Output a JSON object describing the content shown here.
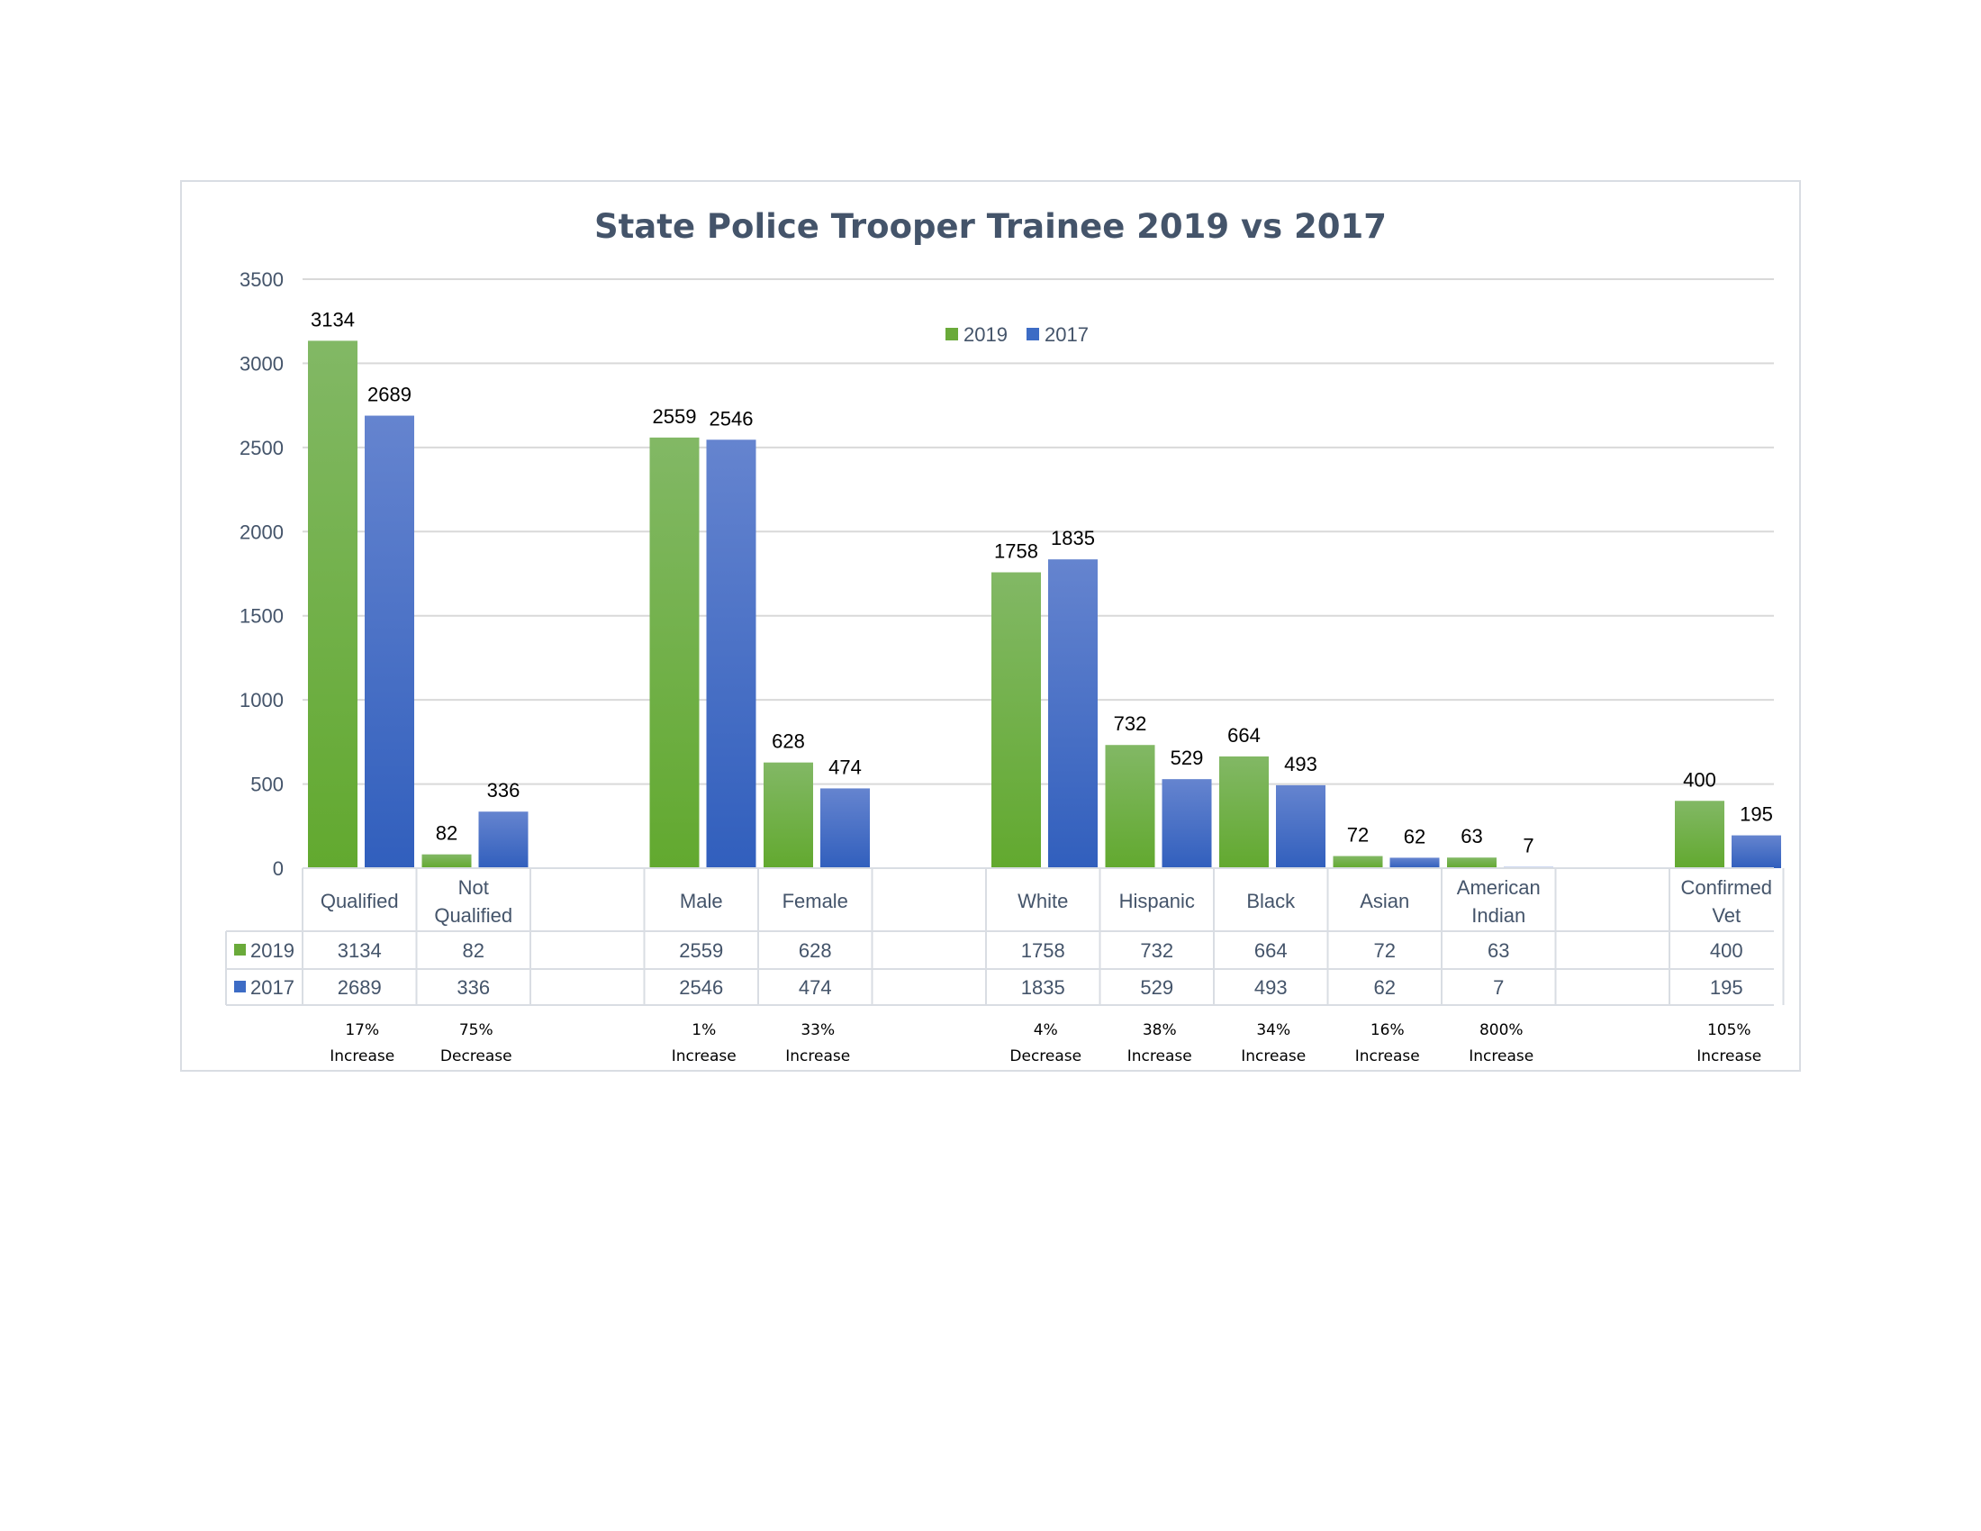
{
  "chart_data": {
    "type": "bar",
    "title": "State Police Trooper Trainee 2019 vs 2017",
    "xlabel": "",
    "ylabel": "",
    "ylim": [
      0,
      3500
    ],
    "yticks": [
      0,
      500,
      1000,
      1500,
      2000,
      2500,
      3000,
      3500
    ],
    "grid": true,
    "legend_position": "top-center",
    "categories": [
      [
        "Qualified"
      ],
      [
        "Not",
        "Qualified"
      ],
      [],
      [
        "Male"
      ],
      [
        "Female"
      ],
      [],
      [
        "White"
      ],
      [
        "Hispanic"
      ],
      [
        "Black"
      ],
      [
        "Asian"
      ],
      [
        "American",
        "Indian"
      ],
      [],
      [
        "Confirmed",
        "Vet"
      ]
    ],
    "series": [
      {
        "name": "2019",
        "color": "#6aaa3a",
        "values": [
          3134,
          82,
          null,
          2559,
          628,
          null,
          1758,
          732,
          664,
          72,
          63,
          null,
          400
        ]
      },
      {
        "name": "2017",
        "color": "#3d6cc5",
        "values": [
          2689,
          336,
          null,
          2546,
          474,
          null,
          1835,
          529,
          493,
          62,
          7,
          null,
          195
        ]
      }
    ],
    "change_annotations": [
      [
        "17%",
        "Increase"
      ],
      [
        "75%",
        "Decrease"
      ],
      null,
      [
        "1%",
        "Increase"
      ],
      [
        "33%",
        "Increase"
      ],
      null,
      [
        "4%",
        "Decrease"
      ],
      [
        "38%",
        "Increase"
      ],
      [
        "34%",
        "Increase"
      ],
      [
        "16%",
        "Increase"
      ],
      [
        "800%",
        "Increase"
      ],
      null,
      [
        "105%",
        "Increase"
      ]
    ]
  }
}
